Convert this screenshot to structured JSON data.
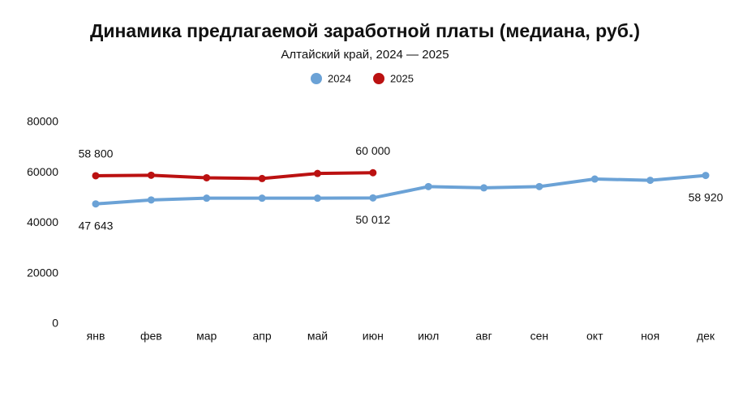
{
  "chart_data": {
    "type": "line",
    "title": "Динамика предлагаемой заработной платы (медиана, руб.)",
    "subtitle": "Алтайский край, 2024 — 2025",
    "categories": [
      "янв",
      "фев",
      "мар",
      "апр",
      "май",
      "июн",
      "июл",
      "авг",
      "сен",
      "окт",
      "ноя",
      "дек"
    ],
    "series": [
      {
        "name": "2024",
        "color": "#6ba2d6",
        "values": [
          47643,
          49200,
          49900,
          49900,
          49900,
          50012,
          54500,
          54000,
          54500,
          57500,
          57000,
          58920
        ],
        "value_labels": [
          "47 643",
          null,
          null,
          null,
          null,
          "50 012",
          null,
          null,
          null,
          null,
          null,
          "58 920"
        ]
      },
      {
        "name": "2025",
        "color": "#bb1111",
        "values": [
          58800,
          59000,
          58000,
          57700,
          59700,
          60000,
          null,
          null,
          null,
          null,
          null,
          null
        ],
        "value_labels": [
          "58 800",
          null,
          null,
          null,
          null,
          "60 000",
          null,
          null,
          null,
          null,
          null,
          null
        ]
      }
    ],
    "ylim": [
      0,
      80000
    ],
    "yticks": [
      0,
      20000,
      40000,
      60000,
      80000
    ],
    "grid": false,
    "legend": "top"
  }
}
